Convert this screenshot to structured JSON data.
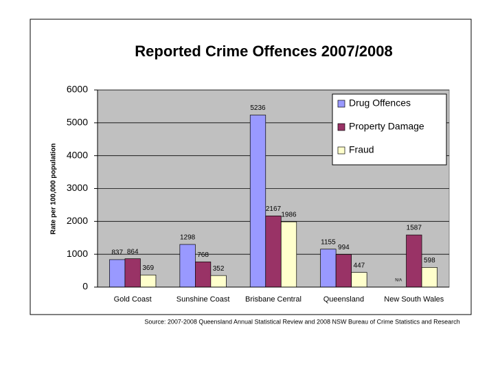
{
  "chart_data": {
    "type": "bar",
    "title": "Reported Crime Offences 2007/2008",
    "y_label": "Rate per 100,000 population",
    "source": "Source: 2007-2008 Queensland Annual Statistical Review and 2008 NSW Bureau of Crime Statistics and Research",
    "categories": [
      "Gold Coast",
      "Sunshine Coast",
      "Brisbane Central",
      "Queensland",
      "New  South Wales"
    ],
    "series": [
      {
        "name": "Drug Offences",
        "color": "#9999ff",
        "values": [
          837,
          1298,
          5236,
          1155,
          null
        ],
        "value_labels": [
          "837",
          "1298",
          "5236",
          "1155",
          "N/A"
        ]
      },
      {
        "name": "Property Damage",
        "color": "#993366",
        "values": [
          864,
          768,
          2167,
          994,
          1587
        ]
      },
      {
        "name": "Fraud",
        "color": "#ffffcc",
        "values": [
          369,
          352,
          1986,
          447,
          598
        ]
      }
    ],
    "ylim": [
      0,
      6000
    ],
    "yticks": [
      0,
      1000,
      2000,
      3000,
      4000,
      5000,
      6000
    ],
    "grid": true,
    "legend": "upper right"
  }
}
